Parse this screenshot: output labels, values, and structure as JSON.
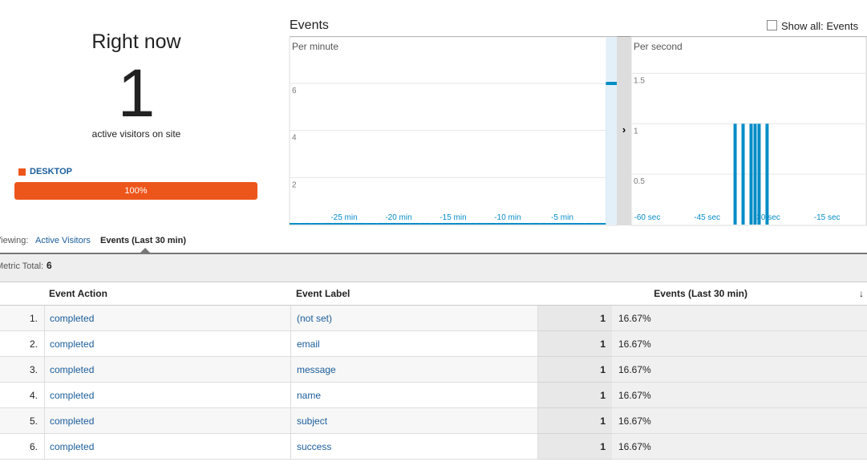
{
  "right_now": {
    "title": "Right now",
    "count": 1,
    "caption": "active visitors on site"
  },
  "device": {
    "label": "DESKTOP",
    "value": 100,
    "value_label": "100%"
  },
  "events_chart": {
    "title": "Events",
    "show_all": "Show all: Events",
    "per_minute": {
      "type": "bar",
      "title": "Per minute",
      "xlim": [
        -30,
        0
      ],
      "ylim": [
        0,
        7.5
      ],
      "yticks": [
        2,
        4,
        6
      ],
      "xticks": [
        {
          "value": -25,
          "label": "-25 min"
        },
        {
          "value": -20,
          "label": "-20 min"
        },
        {
          "value": -15,
          "label": "-15 min"
        },
        {
          "value": -10,
          "label": "-10 min"
        },
        {
          "value": -5,
          "label": "-5 min"
        }
      ],
      "x": [
        -30,
        -29,
        -28,
        -27,
        -26,
        -25,
        -24,
        -23,
        -22,
        -21,
        -20,
        -19,
        -18,
        -17,
        -16,
        -15,
        -14,
        -13,
        -12,
        -11,
        -10,
        -9,
        -8,
        -7,
        -6,
        -5,
        -4,
        -3,
        -2,
        -1
      ],
      "values": [
        0,
        0,
        0,
        0,
        0,
        0,
        0,
        0,
        0,
        0,
        0,
        0,
        0,
        0,
        0,
        0,
        0,
        0,
        0,
        0,
        0,
        0,
        0,
        0,
        0,
        0,
        0,
        0,
        0,
        6
      ],
      "color": "#058dc7"
    },
    "per_second": {
      "type": "bar",
      "title": "Per second",
      "xlim": [
        -64,
        -5
      ],
      "ylim": [
        0,
        1.75
      ],
      "yticks": [
        0.5,
        1,
        1.5
      ],
      "xticks": [
        {
          "value": -60,
          "label": "-60 sec"
        },
        {
          "value": -45,
          "label": "-45 sec"
        },
        {
          "value": -30,
          "label": "-30 sec"
        },
        {
          "value": -15,
          "label": "-15 sec"
        }
      ],
      "x": [
        -38,
        -36,
        -34,
        -33,
        -32,
        -30
      ],
      "values": [
        1,
        1,
        1,
        1,
        1,
        1
      ],
      "color": "#058dc7"
    }
  },
  "tabs": {
    "viewing": "Viewing:",
    "items": [
      "Active Visitors",
      "Events (Last 30 min)"
    ]
  },
  "metric_total": {
    "label": "Metric Total:",
    "value": 6
  },
  "table": {
    "headers": [
      "Event Action",
      "Event Label",
      "Events (Last 30 min)"
    ],
    "rows": [
      [
        "1.",
        "completed",
        "(not set)",
        1,
        "16.67%"
      ],
      [
        "2.",
        "completed",
        "email",
        1,
        "16.67%"
      ],
      [
        "3.",
        "completed",
        "message",
        1,
        "16.67%"
      ],
      [
        "4.",
        "completed",
        "name",
        1,
        "16.67%"
      ],
      [
        "5.",
        "completed",
        "subject",
        1,
        "16.67%"
      ],
      [
        "6.",
        "completed",
        "success",
        1,
        "16.67%"
      ]
    ]
  }
}
